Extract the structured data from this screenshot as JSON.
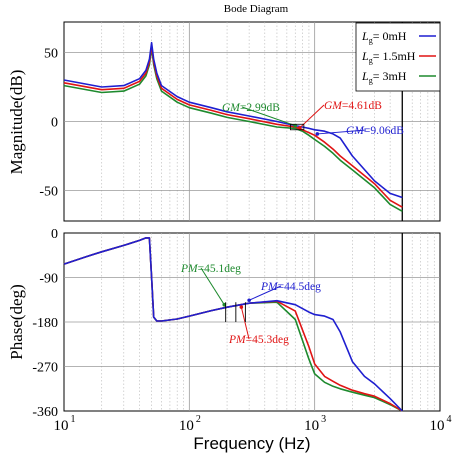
{
  "chart_data": {
    "type": "line",
    "title": "Bode Diagram",
    "xlabel": "Frequency  (Hz)",
    "x_scale": "log",
    "xlim": [
      10,
      10000
    ],
    "x_tick_labels": [
      "10",
      "10",
      "10",
      "10"
    ],
    "x_tick_exponents": [
      "1",
      "2",
      "3",
      "4"
    ],
    "legend": {
      "placement": "top-right",
      "prefix": "L",
      "subscript": "g",
      "entries": [
        "= 0mH",
        "= 1.5mH",
        "= 3mH"
      ]
    },
    "colors": {
      "0mH": "#1f1fd0",
      "1.5mH": "#e01414",
      "3mH": "#1e8a2e"
    },
    "vertical_marker_hz": 5000,
    "panels": [
      {
        "name": "magnitude",
        "ylabel": "Magnitude(dB)",
        "ylim": [
          -72,
          72
        ],
        "y_ticks": [
          50,
          0,
          -50
        ],
        "y_tick_labels": [
          "50",
          "0",
          "-50"
        ],
        "series": [
          {
            "name": "0mH",
            "x": [
              10,
              20,
              30,
              40,
              45,
              48,
              50,
              52,
              55,
              60,
              80,
              100,
              150,
              200,
              300,
              500,
              700,
              800,
              900,
              1000,
              1200,
              1400,
              1600,
              2000,
              3000,
              4000,
              5000
            ],
            "y": [
              30,
              25,
              26,
              31,
              37,
              45,
              57,
              45,
              35,
              26,
              18,
              14,
              10,
              7,
              4,
              0,
              -3,
              -4,
              -5,
              -6,
              -7,
              -9,
              -12,
              -25,
              -43,
              -52,
              -55
            ]
          },
          {
            "name": "1.5mH",
            "x": [
              10,
              20,
              30,
              40,
              45,
              48,
              50,
              52,
              55,
              60,
              80,
              100,
              150,
              200,
              300,
              500,
              700,
              800,
              900,
              1000,
              1200,
              1400,
              1600,
              2000,
              3000,
              4000,
              5000
            ],
            "y": [
              28,
              23,
              24,
              29,
              35,
              43,
              55,
              43,
              33,
              24,
              16,
              12,
              8,
              5,
              2,
              -2,
              -4,
              -6,
              -8,
              -10,
              -15,
              -20,
              -25,
              -32,
              -45,
              -57,
              -62
            ]
          },
          {
            "name": "3mH",
            "x": [
              10,
              20,
              30,
              40,
              45,
              48,
              50,
              52,
              55,
              60,
              80,
              100,
              150,
              200,
              300,
              500,
              700,
              800,
              900,
              1000,
              1200,
              1400,
              1600,
              2000,
              3000,
              4000,
              5000
            ],
            "y": [
              26,
              21,
              22,
              27,
              33,
              41,
              53,
              41,
              31,
              22,
              14,
              10,
              6,
              3,
              0,
              -4,
              -5,
              -7,
              -10,
              -13,
              -18,
              -23,
              -28,
              -35,
              -48,
              -60,
              -65
            ]
          }
        ],
        "annotations": [
          {
            "text": "GM=2.99dB",
            "italic_part": "GM",
            "value_part": "=2.99dB",
            "color": "#1e8a2e",
            "x": 700,
            "y": -3
          },
          {
            "text": "GM=4.61dB",
            "italic_part": "GM",
            "value_part": "=4.61dB",
            "color": "#e01414",
            "x": 760,
            "y": -4.6
          },
          {
            "text": "GM=9.06dB",
            "italic_part": "GM",
            "value_part": "=9.06dB",
            "color": "#1f1fd0",
            "x": 1050,
            "y": -9
          }
        ]
      },
      {
        "name": "phase",
        "ylabel": "Phase(deg)",
        "ylim": [
          -360,
          0
        ],
        "y_ticks": [
          0,
          -90,
          -180,
          -270,
          -360
        ],
        "y_tick_labels": [
          "0",
          "-90",
          "-180",
          "-270",
          "-360"
        ],
        "series": [
          {
            "name": "0mH",
            "x": [
              10,
              15,
              20,
              30,
              40,
              45,
              48,
              50,
              52,
              55,
              60,
              80,
              100,
              150,
              200,
              300,
              500,
              700,
              900,
              1000,
              1200,
              1400,
              1600,
              2000,
              2500,
              3000,
              4000,
              5000
            ],
            "y": [
              -63,
              -48,
              -38,
              -25,
              -15,
              -10,
              -10,
              -90,
              -170,
              -178,
              -178,
              -174,
              -168,
              -157,
              -150,
              -142,
              -137,
              -145,
              -160,
              -165,
              -168,
              -175,
              -200,
              -260,
              -290,
              -305,
              -335,
              -360
            ]
          },
          {
            "name": "1.5mH",
            "x": [
              10,
              15,
              20,
              30,
              40,
              45,
              48,
              50,
              52,
              55,
              60,
              80,
              100,
              150,
              200,
              300,
              500,
              700,
              900,
              1000,
              1200,
              1400,
              1600,
              2000,
              2500,
              3000,
              4000,
              5000
            ],
            "y": [
              -63,
              -48,
              -38,
              -25,
              -15,
              -10,
              -10,
              -90,
              -170,
              -178,
              -178,
              -174,
              -168,
              -157,
              -150,
              -142,
              -138,
              -158,
              -230,
              -265,
              -290,
              -300,
              -308,
              -318,
              -325,
              -330,
              -345,
              -360
            ]
          },
          {
            "name": "3mH",
            "x": [
              10,
              15,
              20,
              30,
              40,
              45,
              48,
              50,
              52,
              55,
              60,
              80,
              100,
              150,
              200,
              300,
              500,
              700,
              900,
              1000,
              1200,
              1400,
              1600,
              2000,
              2500,
              3000,
              4000,
              5000
            ],
            "y": [
              -63,
              -48,
              -38,
              -25,
              -15,
              -10,
              -10,
              -90,
              -170,
              -178,
              -178,
              -174,
              -168,
              -157,
              -150,
              -142,
              -140,
              -175,
              -255,
              -285,
              -302,
              -310,
              -315,
              -322,
              -328,
              -333,
              -347,
              -360
            ]
          }
        ],
        "annotations": [
          {
            "text": "PM=45.1deg",
            "italic_part": "PM",
            "value_part": "=45.1deg",
            "color": "#1e8a2e",
            "x": 190,
            "y": -145
          },
          {
            "text": "PM=44.5deg",
            "italic_part": "PM",
            "value_part": "=44.5deg",
            "color": "#1f1fd0",
            "x": 300,
            "y": -136
          },
          {
            "text": "PM=45.3deg",
            "italic_part": "PM",
            "value_part": "=45.3deg",
            "color": "#e01414",
            "x": 260,
            "y": -150
          }
        ]
      }
    ]
  }
}
